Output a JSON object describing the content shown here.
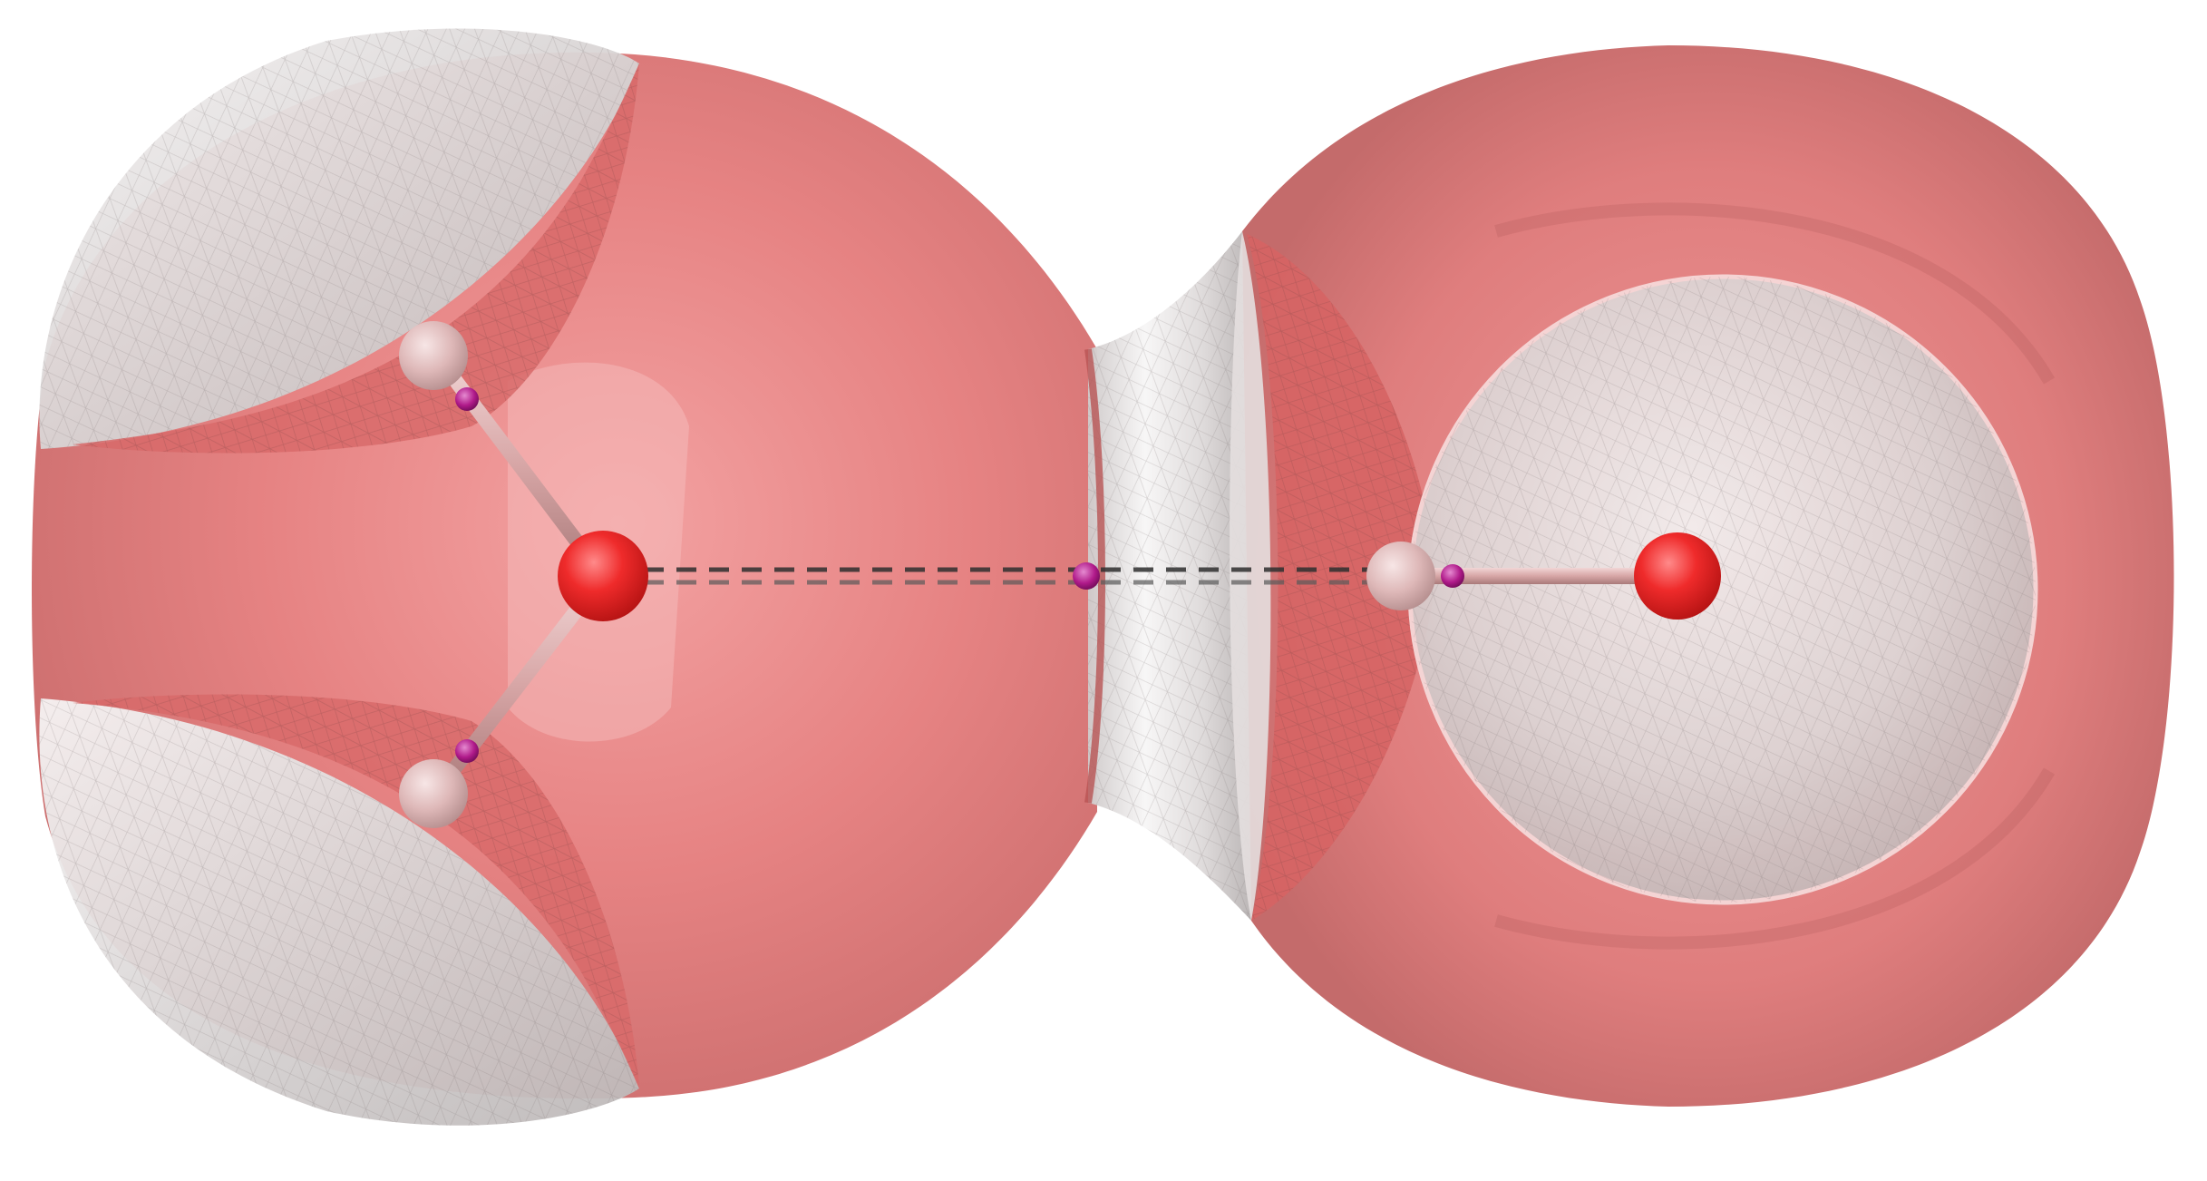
{
  "colors": {
    "background": "#ffffff",
    "basin_surface": "#e07474",
    "basin_shadow": "#c25c5c",
    "inner_surface": "#e6e1e1",
    "inner_surface_shade": "#c9c4c4",
    "oxygen_atom": "#ee2a2a",
    "hydrogen_atom": "#ddb6b6",
    "bond_stick": "#d9a8a8",
    "critical_point": "#b01a8a",
    "hydrogen_bond_dash": "#2f2f2f"
  },
  "diagram": {
    "molecules": [
      "water-acceptor",
      "water-donor"
    ],
    "atoms": [
      "O",
      "H",
      "H",
      "O",
      "H"
    ],
    "bonds": [
      "O-H",
      "O-H",
      "O-H",
      "O...H"
    ],
    "bond_critical_points": 4,
    "surface_style": "translucent wireframe isosurface"
  }
}
